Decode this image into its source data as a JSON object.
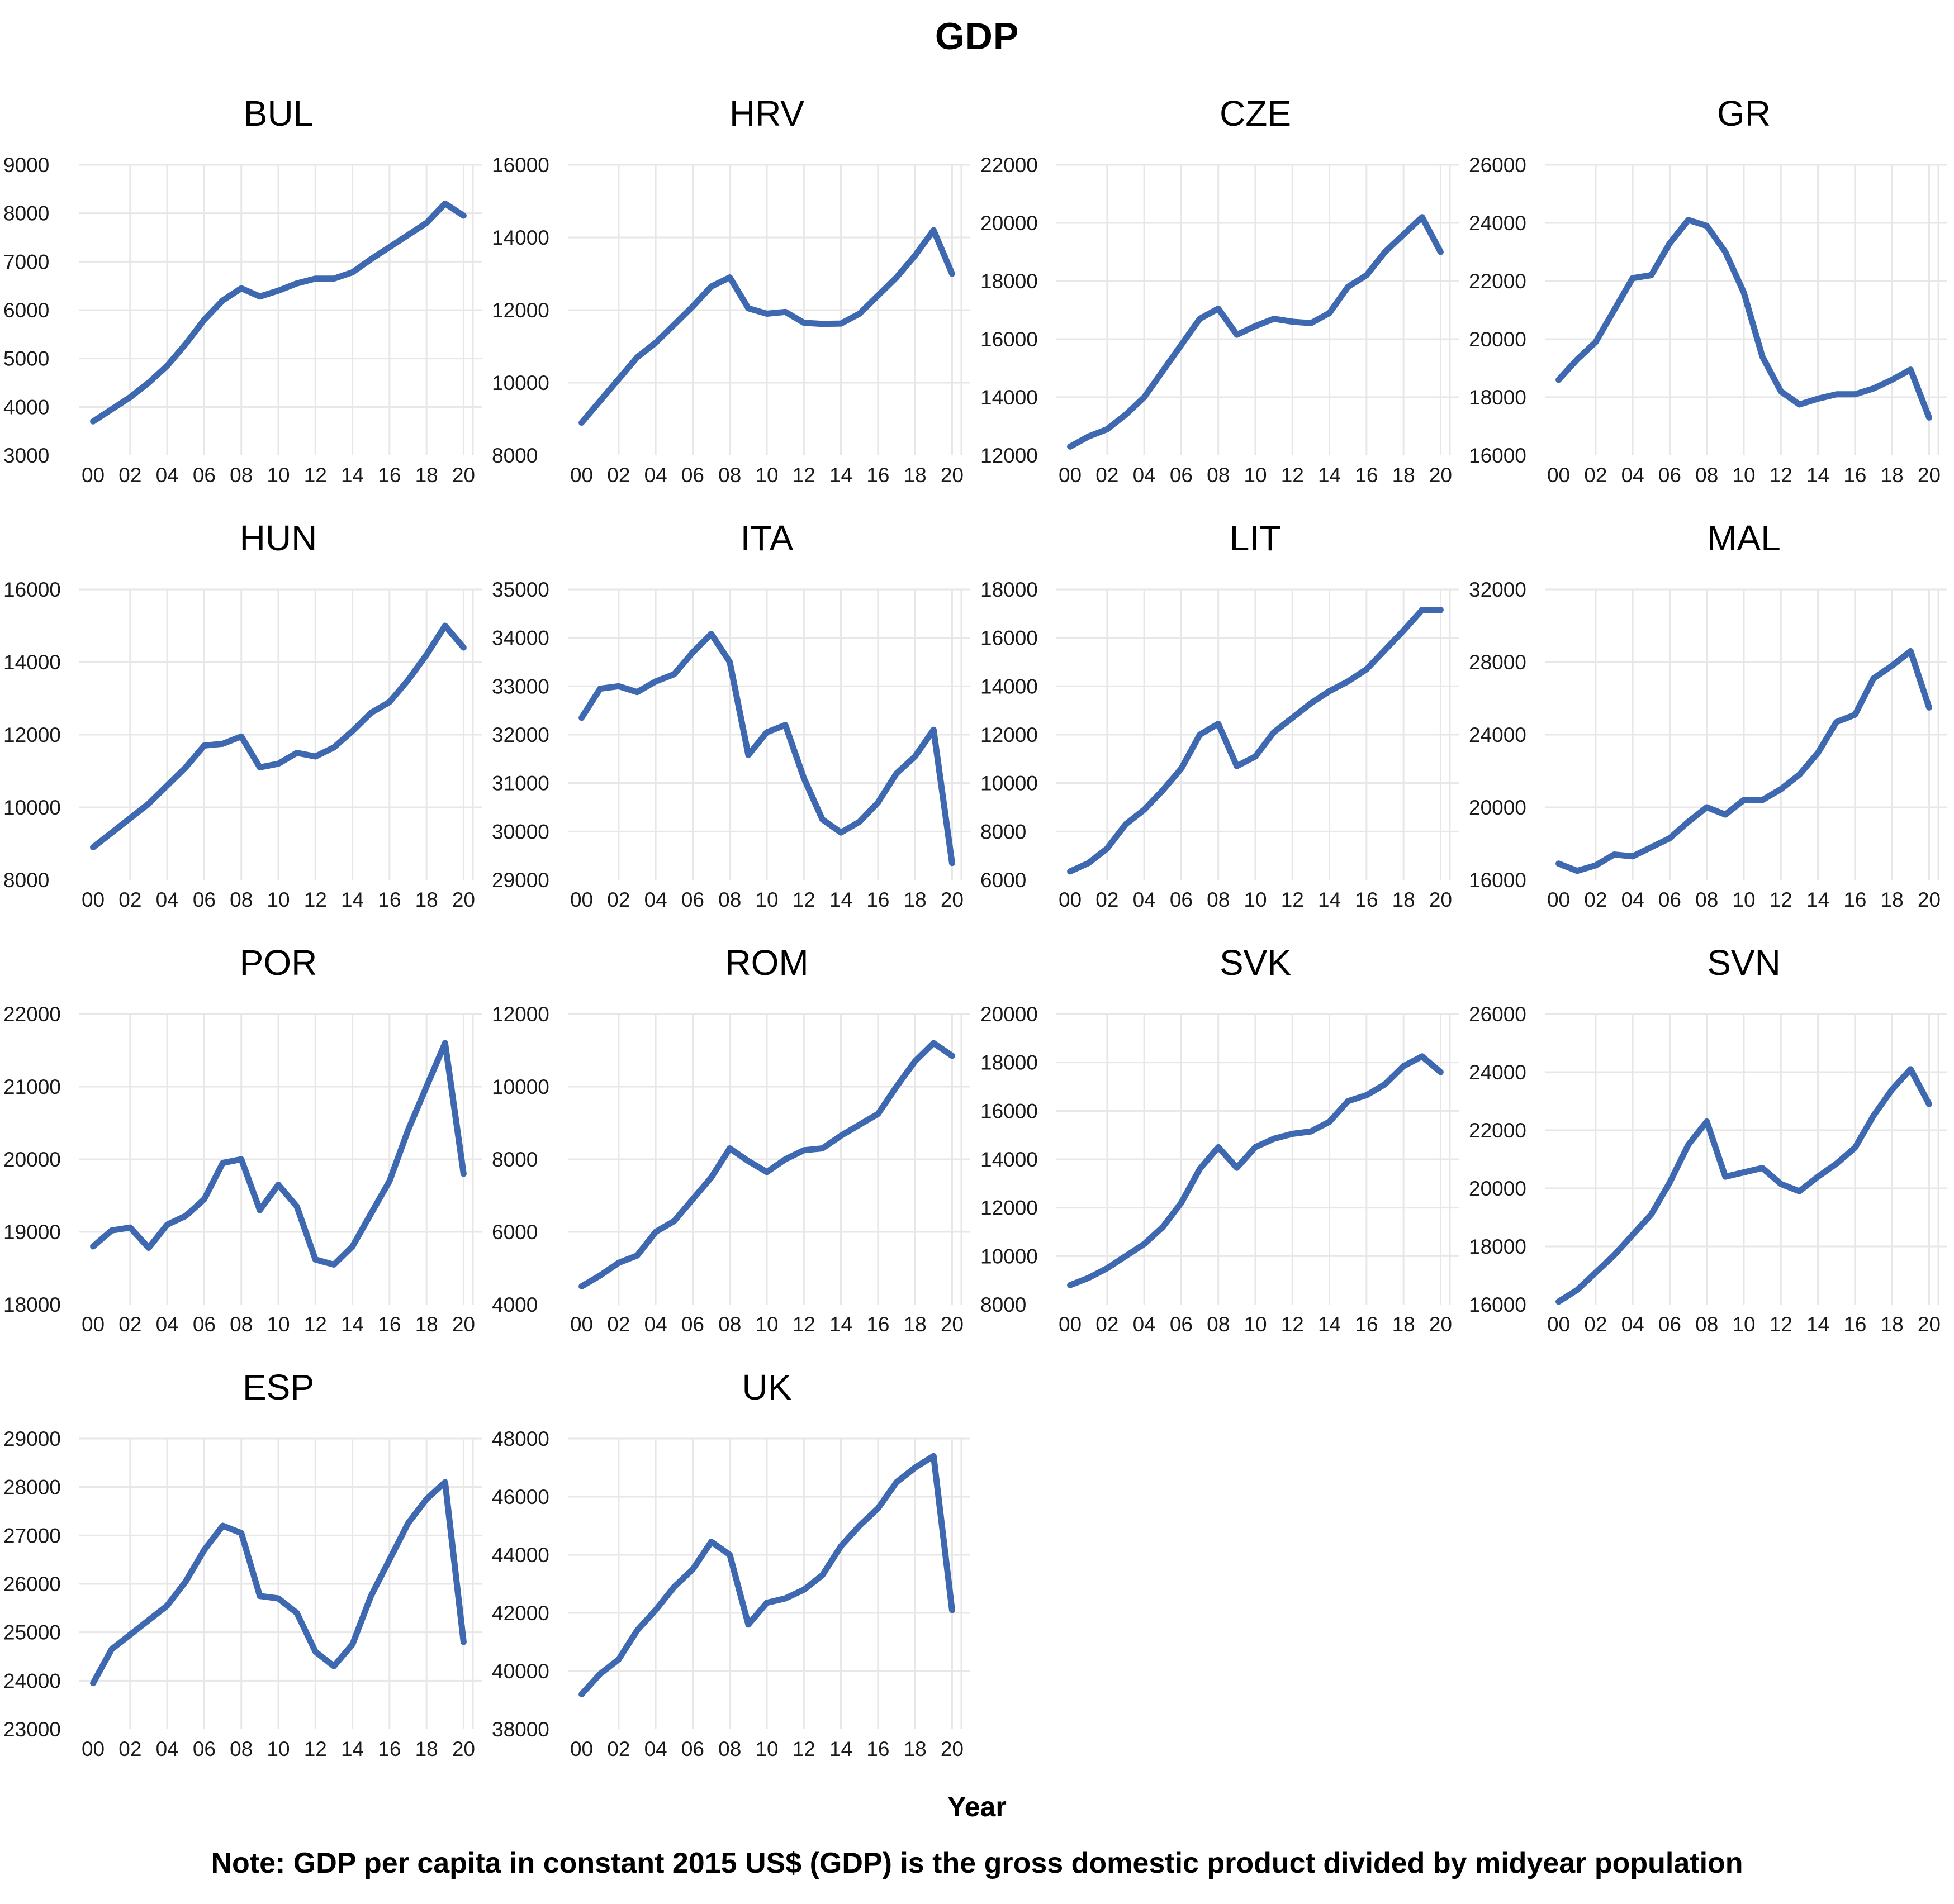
{
  "page": {
    "title": "GDP",
    "xlabel": "Year",
    "note": "Note: GDP per capita in constant 2015 US$ (GDP) is the gross domestic product divided by midyear population",
    "line_color": "#3E68AF",
    "grid_color": "#E7E7E7",
    "tick_color": "#1a1a1a"
  },
  "chart_data": [
    {
      "type": "line",
      "title": "BUL",
      "xlabel": "Year",
      "ylabel": "",
      "x": [
        2000,
        2001,
        2002,
        2003,
        2004,
        2005,
        2006,
        2007,
        2008,
        2009,
        2010,
        2011,
        2012,
        2013,
        2014,
        2015,
        2016,
        2017,
        2018,
        2019,
        2020
      ],
      "x_tick_labels": [
        "00",
        "02",
        "04",
        "06",
        "08",
        "10",
        "12",
        "14",
        "16",
        "18",
        "20"
      ],
      "ylim": [
        3000,
        9000
      ],
      "ytick_step": 1000,
      "grid": true,
      "legend": false,
      "values": [
        3700,
        3950,
        4200,
        4500,
        4850,
        5300,
        5800,
        6200,
        6450,
        6280,
        6400,
        6550,
        6650,
        6650,
        6780,
        7050,
        7300,
        7550,
        7800,
        8200,
        7950
      ]
    },
    {
      "type": "line",
      "title": "HRV",
      "xlabel": "Year",
      "ylabel": "",
      "x": [
        2000,
        2001,
        2002,
        2003,
        2004,
        2005,
        2006,
        2007,
        2008,
        2009,
        2010,
        2011,
        2012,
        2013,
        2014,
        2015,
        2016,
        2017,
        2018,
        2019,
        2020
      ],
      "x_tick_labels": [
        "00",
        "02",
        "04",
        "06",
        "08",
        "10",
        "12",
        "14",
        "16",
        "18",
        "20"
      ],
      "ylim": [
        8000,
        16000
      ],
      "ytick_step": 2000,
      "grid": true,
      "legend": false,
      "values": [
        8900,
        9500,
        10100,
        10700,
        11100,
        11600,
        12100,
        12650,
        12900,
        12050,
        11900,
        11950,
        11650,
        11620,
        11630,
        11900,
        12400,
        12900,
        13500,
        14200,
        13000
      ]
    },
    {
      "type": "line",
      "title": "CZE",
      "xlabel": "Year",
      "ylabel": "",
      "x": [
        2000,
        2001,
        2002,
        2003,
        2004,
        2005,
        2006,
        2007,
        2008,
        2009,
        2010,
        2011,
        2012,
        2013,
        2014,
        2015,
        2016,
        2017,
        2018,
        2019,
        2020
      ],
      "x_tick_labels": [
        "00",
        "02",
        "04",
        "06",
        "08",
        "10",
        "12",
        "14",
        "16",
        "18",
        "20"
      ],
      "ylim": [
        12000,
        22000
      ],
      "ytick_step": 2000,
      "grid": true,
      "legend": false,
      "values": [
        12300,
        12650,
        12900,
        13400,
        14000,
        14900,
        15800,
        16700,
        17050,
        16150,
        16450,
        16700,
        16600,
        16550,
        16900,
        17800,
        18200,
        19000,
        19600,
        20200,
        19000
      ]
    },
    {
      "type": "line",
      "title": "GR",
      "xlabel": "Year",
      "ylabel": "",
      "x": [
        2000,
        2001,
        2002,
        2003,
        2004,
        2005,
        2006,
        2007,
        2008,
        2009,
        2010,
        2011,
        2012,
        2013,
        2014,
        2015,
        2016,
        2017,
        2018,
        2019,
        2020
      ],
      "x_tick_labels": [
        "00",
        "02",
        "04",
        "06",
        "08",
        "10",
        "12",
        "14",
        "16",
        "18",
        "20"
      ],
      "ylim": [
        16000,
        26000
      ],
      "ytick_step": 2000,
      "grid": true,
      "legend": false,
      "values": [
        18600,
        19300,
        19900,
        21000,
        22100,
        22200,
        23300,
        24100,
        23900,
        23000,
        21600,
        19400,
        18200,
        17750,
        17950,
        18100,
        18100,
        18300,
        18600,
        18950,
        17300
      ]
    },
    {
      "type": "line",
      "title": "HUN",
      "xlabel": "Year",
      "ylabel": "",
      "x": [
        2000,
        2001,
        2002,
        2003,
        2004,
        2005,
        2006,
        2007,
        2008,
        2009,
        2010,
        2011,
        2012,
        2013,
        2014,
        2015,
        2016,
        2017,
        2018,
        2019,
        2020
      ],
      "x_tick_labels": [
        "00",
        "02",
        "04",
        "06",
        "08",
        "10",
        "12",
        "14",
        "16",
        "18",
        "20"
      ],
      "ylim": [
        8000,
        16000
      ],
      "ytick_step": 2000,
      "grid": true,
      "legend": false,
      "values": [
        8900,
        9300,
        9700,
        10100,
        10600,
        11100,
        11700,
        11750,
        11950,
        11100,
        11200,
        11500,
        11400,
        11650,
        12100,
        12600,
        12900,
        13500,
        14200,
        15000,
        14400
      ]
    },
    {
      "type": "line",
      "title": "ITA",
      "xlabel": "Year",
      "ylabel": "",
      "x": [
        2000,
        2001,
        2002,
        2003,
        2004,
        2005,
        2006,
        2007,
        2008,
        2009,
        2010,
        2011,
        2012,
        2013,
        2014,
        2015,
        2016,
        2017,
        2018,
        2019,
        2020
      ],
      "x_tick_labels": [
        "00",
        "02",
        "04",
        "06",
        "08",
        "10",
        "12",
        "14",
        "16",
        "18",
        "20"
      ],
      "ylim": [
        29000,
        35000
      ],
      "ytick_step": 1000,
      "grid": true,
      "legend": false,
      "values": [
        32350,
        32950,
        33000,
        32880,
        33100,
        33250,
        33700,
        34080,
        33500,
        31580,
        32050,
        32200,
        31100,
        30250,
        29980,
        30200,
        30600,
        31200,
        31550,
        32100,
        29350
      ]
    },
    {
      "type": "line",
      "title": "LIT",
      "xlabel": "Year",
      "ylabel": "",
      "x": [
        2000,
        2001,
        2002,
        2003,
        2004,
        2005,
        2006,
        2007,
        2008,
        2009,
        2010,
        2011,
        2012,
        2013,
        2014,
        2015,
        2016,
        2017,
        2018,
        2019,
        2020
      ],
      "x_tick_labels": [
        "00",
        "02",
        "04",
        "06",
        "08",
        "10",
        "12",
        "14",
        "16",
        "18",
        "20"
      ],
      "ylim": [
        6000,
        18000
      ],
      "ytick_step": 2000,
      "grid": true,
      "legend": false,
      "values": [
        6350,
        6700,
        7300,
        8300,
        8900,
        9700,
        10600,
        12000,
        12450,
        10700,
        11100,
        12100,
        12700,
        13300,
        13800,
        14200,
        14700,
        15500,
        16300,
        17150,
        17150
      ]
    },
    {
      "type": "line",
      "title": "MAL",
      "xlabel": "Year",
      "ylabel": "",
      "x": [
        2000,
        2001,
        2002,
        2003,
        2004,
        2005,
        2006,
        2007,
        2008,
        2009,
        2010,
        2011,
        2012,
        2013,
        2014,
        2015,
        2016,
        2017,
        2018,
        2019,
        2020
      ],
      "x_tick_labels": [
        "00",
        "02",
        "04",
        "06",
        "08",
        "10",
        "12",
        "14",
        "16",
        "18",
        "20"
      ],
      "ylim": [
        16000,
        32000
      ],
      "ytick_step": 4000,
      "grid": true,
      "legend": false,
      "values": [
        16900,
        16500,
        16800,
        17400,
        17300,
        17800,
        18300,
        19200,
        20000,
        19600,
        20400,
        20400,
        21000,
        21800,
        23000,
        24700,
        25100,
        27100,
        27800,
        28600,
        25500
      ]
    },
    {
      "type": "line",
      "title": "POR",
      "xlabel": "Year",
      "ylabel": "",
      "x": [
        2000,
        2001,
        2002,
        2003,
        2004,
        2005,
        2006,
        2007,
        2008,
        2009,
        2010,
        2011,
        2012,
        2013,
        2014,
        2015,
        2016,
        2017,
        2018,
        2019,
        2020
      ],
      "x_tick_labels": [
        "00",
        "02",
        "04",
        "06",
        "08",
        "10",
        "12",
        "14",
        "16",
        "18",
        "20"
      ],
      "ylim": [
        18000,
        22000
      ],
      "ytick_step": 1000,
      "grid": true,
      "legend": false,
      "values": [
        18800,
        19020,
        19060,
        18780,
        19100,
        19220,
        19450,
        19950,
        20000,
        19300,
        19650,
        19350,
        18620,
        18550,
        18800,
        19250,
        19700,
        20400,
        21000,
        21600,
        19800
      ]
    },
    {
      "type": "line",
      "title": "ROM",
      "xlabel": "Year",
      "ylabel": "",
      "x": [
        2000,
        2001,
        2002,
        2003,
        2004,
        2005,
        2006,
        2007,
        2008,
        2009,
        2010,
        2011,
        2012,
        2013,
        2014,
        2015,
        2016,
        2017,
        2018,
        2019,
        2020
      ],
      "x_tick_labels": [
        "00",
        "02",
        "04",
        "06",
        "08",
        "10",
        "12",
        "14",
        "16",
        "18",
        "20"
      ],
      "ylim": [
        4000,
        12000
      ],
      "ytick_step": 2000,
      "grid": true,
      "legend": false,
      "values": [
        4500,
        4800,
        5150,
        5350,
        6000,
        6300,
        6900,
        7500,
        8300,
        7950,
        7650,
        8000,
        8250,
        8300,
        8650,
        8950,
        9250,
        10000,
        10700,
        11200,
        10850
      ]
    },
    {
      "type": "line",
      "title": "SVK",
      "xlabel": "Year",
      "ylabel": "",
      "x": [
        2000,
        2001,
        2002,
        2003,
        2004,
        2005,
        2006,
        2007,
        2008,
        2009,
        2010,
        2011,
        2012,
        2013,
        2014,
        2015,
        2016,
        2017,
        2018,
        2019,
        2020
      ],
      "x_tick_labels": [
        "00",
        "02",
        "04",
        "06",
        "08",
        "10",
        "12",
        "14",
        "16",
        "18",
        "20"
      ],
      "ylim": [
        8000,
        20000
      ],
      "ytick_step": 2000,
      "grid": true,
      "legend": false,
      "values": [
        8800,
        9100,
        9500,
        10000,
        10500,
        11200,
        12200,
        13600,
        14500,
        13650,
        14500,
        14850,
        15050,
        15150,
        15550,
        16400,
        16650,
        17100,
        17850,
        18250,
        17600
      ]
    },
    {
      "type": "line",
      "title": "SVN",
      "xlabel": "Year",
      "ylabel": "",
      "x": [
        2000,
        2001,
        2002,
        2003,
        2004,
        2005,
        2006,
        2007,
        2008,
        2009,
        2010,
        2011,
        2012,
        2013,
        2014,
        2015,
        2016,
        2017,
        2018,
        2019,
        2020
      ],
      "x_tick_labels": [
        "00",
        "02",
        "04",
        "06",
        "08",
        "10",
        "12",
        "14",
        "16",
        "18",
        "20"
      ],
      "ylim": [
        16000,
        26000
      ],
      "ytick_step": 2000,
      "grid": true,
      "legend": false,
      "values": [
        16100,
        16500,
        17100,
        17700,
        18400,
        19100,
        20200,
        21500,
        22300,
        20400,
        20550,
        20700,
        20150,
        19900,
        20400,
        20850,
        21400,
        22500,
        23400,
        24100,
        22900
      ]
    },
    {
      "type": "line",
      "title": "ESP",
      "xlabel": "Year",
      "ylabel": "",
      "x": [
        2000,
        2001,
        2002,
        2003,
        2004,
        2005,
        2006,
        2007,
        2008,
        2009,
        2010,
        2011,
        2012,
        2013,
        2014,
        2015,
        2016,
        2017,
        2018,
        2019,
        2020
      ],
      "x_tick_labels": [
        "00",
        "02",
        "04",
        "06",
        "08",
        "10",
        "12",
        "14",
        "16",
        "18",
        "20"
      ],
      "ylim": [
        23000,
        29000
      ],
      "ytick_step": 1000,
      "grid": true,
      "legend": false,
      "values": [
        23950,
        24650,
        24950,
        25250,
        25550,
        26050,
        26700,
        27200,
        27050,
        25750,
        25700,
        25400,
        24600,
        24300,
        24750,
        25750,
        26500,
        27250,
        27750,
        28100,
        24800
      ]
    },
    {
      "type": "line",
      "title": "UK",
      "xlabel": "Year",
      "ylabel": "",
      "x": [
        2000,
        2001,
        2002,
        2003,
        2004,
        2005,
        2006,
        2007,
        2008,
        2009,
        2010,
        2011,
        2012,
        2013,
        2014,
        2015,
        2016,
        2017,
        2018,
        2019,
        2020
      ],
      "x_tick_labels": [
        "00",
        "02",
        "04",
        "06",
        "08",
        "10",
        "12",
        "14",
        "16",
        "18",
        "20"
      ],
      "ylim": [
        38000,
        48000
      ],
      "ytick_step": 2000,
      "grid": true,
      "legend": false,
      "values": [
        39200,
        39900,
        40400,
        41400,
        42100,
        42900,
        43500,
        44450,
        44000,
        41600,
        42350,
        42500,
        42800,
        43300,
        44300,
        45000,
        45600,
        46500,
        47000,
        47400,
        42100
      ]
    }
  ]
}
